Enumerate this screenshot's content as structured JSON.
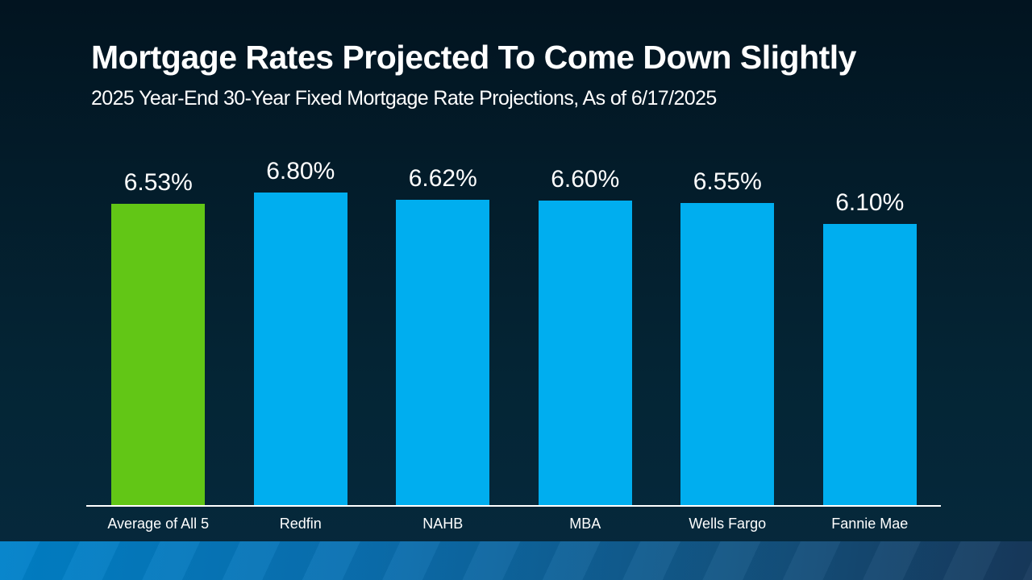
{
  "slide": {
    "title": "Mortgage Rates Projected To Come Down Slightly",
    "subtitle": "2025 Year-End 30-Year Fixed Mortgage Rate Projections, As of 6/17/2025"
  },
  "chart_data": {
    "type": "bar",
    "title": "2025 Year-End 30-Year Fixed Mortgage Rate Projections, As of 6/17/2025",
    "categories": [
      "Average of All 5",
      "Redfin",
      "NAHB",
      "MBA",
      "Wells Fargo",
      "Fannie Mae"
    ],
    "values": [
      6.53,
      6.8,
      6.62,
      6.6,
      6.55,
      6.1
    ],
    "value_labels": [
      "6.53%",
      "6.80%",
      "6.62%",
      "6.60%",
      "6.55%",
      "6.10%"
    ],
    "xlabel": "",
    "ylabel": "",
    "ylim": [
      0,
      6.8
    ],
    "grid": false,
    "legend": false,
    "bar_colors": [
      "#62C616",
      "#00AEEF",
      "#00AEEF",
      "#00AEEF",
      "#00AEEF",
      "#00AEEF"
    ],
    "highlight_index": 0
  },
  "colors": {
    "bar_blue": "#00AEEF",
    "bar_green": "#62C616",
    "axis_line": "#FFFFFF",
    "text": "#FFFFFF",
    "background_top": "#021420",
    "background_bottom": "#06293D",
    "footer_left": "#0082CA",
    "footer_right": "#17395C"
  }
}
